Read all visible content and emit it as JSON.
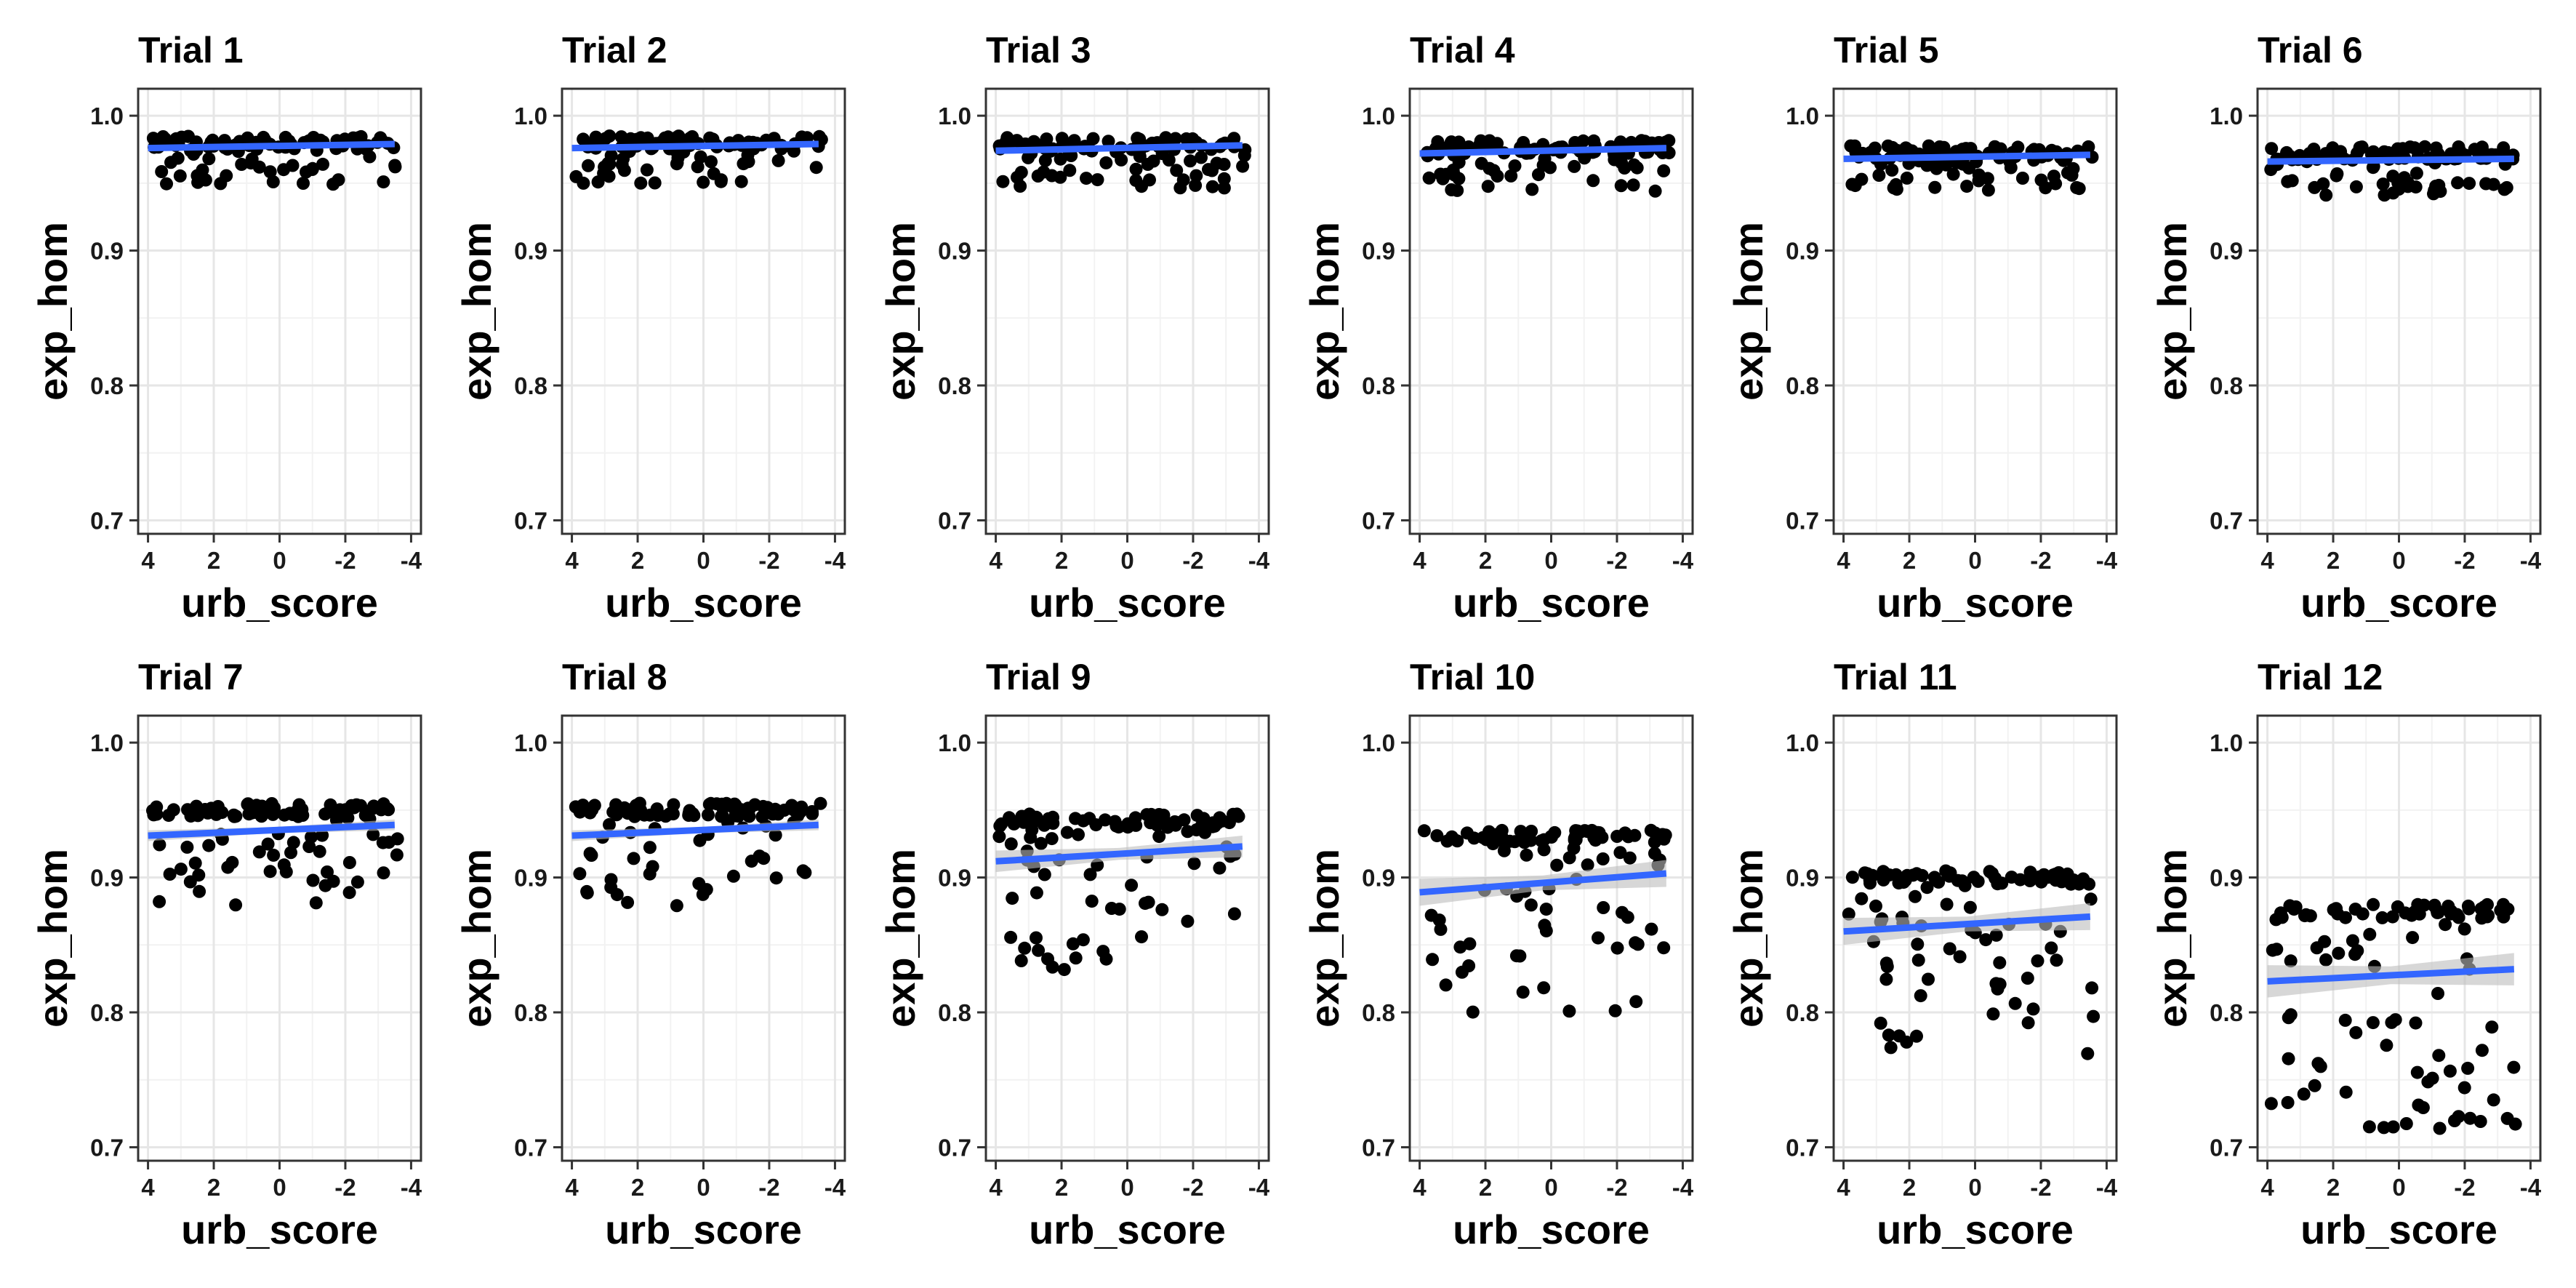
{
  "chart_data": {
    "type": "scatter",
    "layout": "facets 2 rows x 6 columns",
    "xlabel": "urb_score",
    "ylabel": "exp_hom",
    "x_reversed": true,
    "xlim": [
      4.3,
      -4.3
    ],
    "ylim": [
      0.69,
      1.02
    ],
    "x_ticks": [
      4,
      2,
      0,
      -2,
      -4
    ],
    "x_tick_labels": [
      "4",
      "2",
      "0",
      "-2",
      "-4"
    ],
    "y_ticks": [
      0.7,
      0.8,
      0.9,
      1.0
    ],
    "y_tick_labels": [
      "0.7",
      "0.8",
      "0.9",
      "1.0"
    ],
    "grid": true,
    "point_color": "#000000",
    "line_color": "#3366ff",
    "ribbon_color": "#bdbdbd",
    "trend": "linear fit with confidence band",
    "panels": [
      {
        "title": "Trial 1",
        "fit": {
          "x0": 4,
          "y0": 0.976,
          "x1": -3.5,
          "y1": 0.979
        },
        "ci": 0.002,
        "y_top": 0.985,
        "spread": 0.03,
        "lower_frac": 0.45
      },
      {
        "title": "Trial 2",
        "fit": {
          "x0": 4,
          "y0": 0.976,
          "x1": -3.5,
          "y1": 0.979
        },
        "ci": 0.002,
        "y_top": 0.985,
        "spread": 0.03,
        "lower_frac": 0.45
      },
      {
        "title": "Trial 3",
        "fit": {
          "x0": 4,
          "y0": 0.974,
          "x1": -3.5,
          "y1": 0.978
        },
        "ci": 0.002,
        "y_top": 0.984,
        "spread": 0.032,
        "lower_frac": 0.45
      },
      {
        "title": "Trial 4",
        "fit": {
          "x0": 4,
          "y0": 0.972,
          "x1": -3.5,
          "y1": 0.976
        },
        "ci": 0.002,
        "y_top": 0.982,
        "spread": 0.032,
        "lower_frac": 0.45
      },
      {
        "title": "Trial 5",
        "fit": {
          "x0": 4,
          "y0": 0.968,
          "x1": -3.5,
          "y1": 0.971
        },
        "ci": 0.002,
        "y_top": 0.978,
        "spread": 0.028,
        "lower_frac": 0.45
      },
      {
        "title": "Trial 6",
        "fit": {
          "x0": 4,
          "y0": 0.966,
          "x1": -3.5,
          "y1": 0.968
        },
        "ci": 0.002,
        "y_top": 0.977,
        "spread": 0.03,
        "lower_frac": 0.45
      },
      {
        "title": "Trial 7",
        "fit": {
          "x0": 4,
          "y0": 0.931,
          "x1": -3.5,
          "y1": 0.939
        },
        "ci": 0.004,
        "y_top": 0.955,
        "spread": 0.07,
        "lower_frac": 0.4
      },
      {
        "title": "Trial 8",
        "fit": {
          "x0": 4,
          "y0": 0.931,
          "x1": -3.5,
          "y1": 0.939
        },
        "ci": 0.004,
        "y_top": 0.955,
        "spread": 0.07,
        "lower_frac": 0.4
      },
      {
        "title": "Trial 9",
        "fit": {
          "x0": 4,
          "y0": 0.912,
          "x1": -3.5,
          "y1": 0.923
        },
        "ci": 0.008,
        "y_top": 0.947,
        "spread": 0.11,
        "lower_frac": 0.4
      },
      {
        "title": "Trial 10",
        "fit": {
          "x0": 4,
          "y0": 0.889,
          "x1": -3.5,
          "y1": 0.903
        },
        "ci": 0.01,
        "y_top": 0.935,
        "spread": 0.13,
        "lower_frac": 0.42
      },
      {
        "title": "Trial 11",
        "fit": {
          "x0": 4,
          "y0": 0.86,
          "x1": -3.5,
          "y1": 0.871
        },
        "ci": 0.01,
        "y_top": 0.905,
        "spread": 0.13,
        "lower_frac": 0.45
      },
      {
        "title": "Trial 12",
        "fit": {
          "x0": 4,
          "y0": 0.823,
          "x1": -3.5,
          "y1": 0.832
        },
        "ci": 0.012,
        "y_top": 0.88,
        "spread": 0.16,
        "lower_frac": 0.48
      }
    ]
  }
}
